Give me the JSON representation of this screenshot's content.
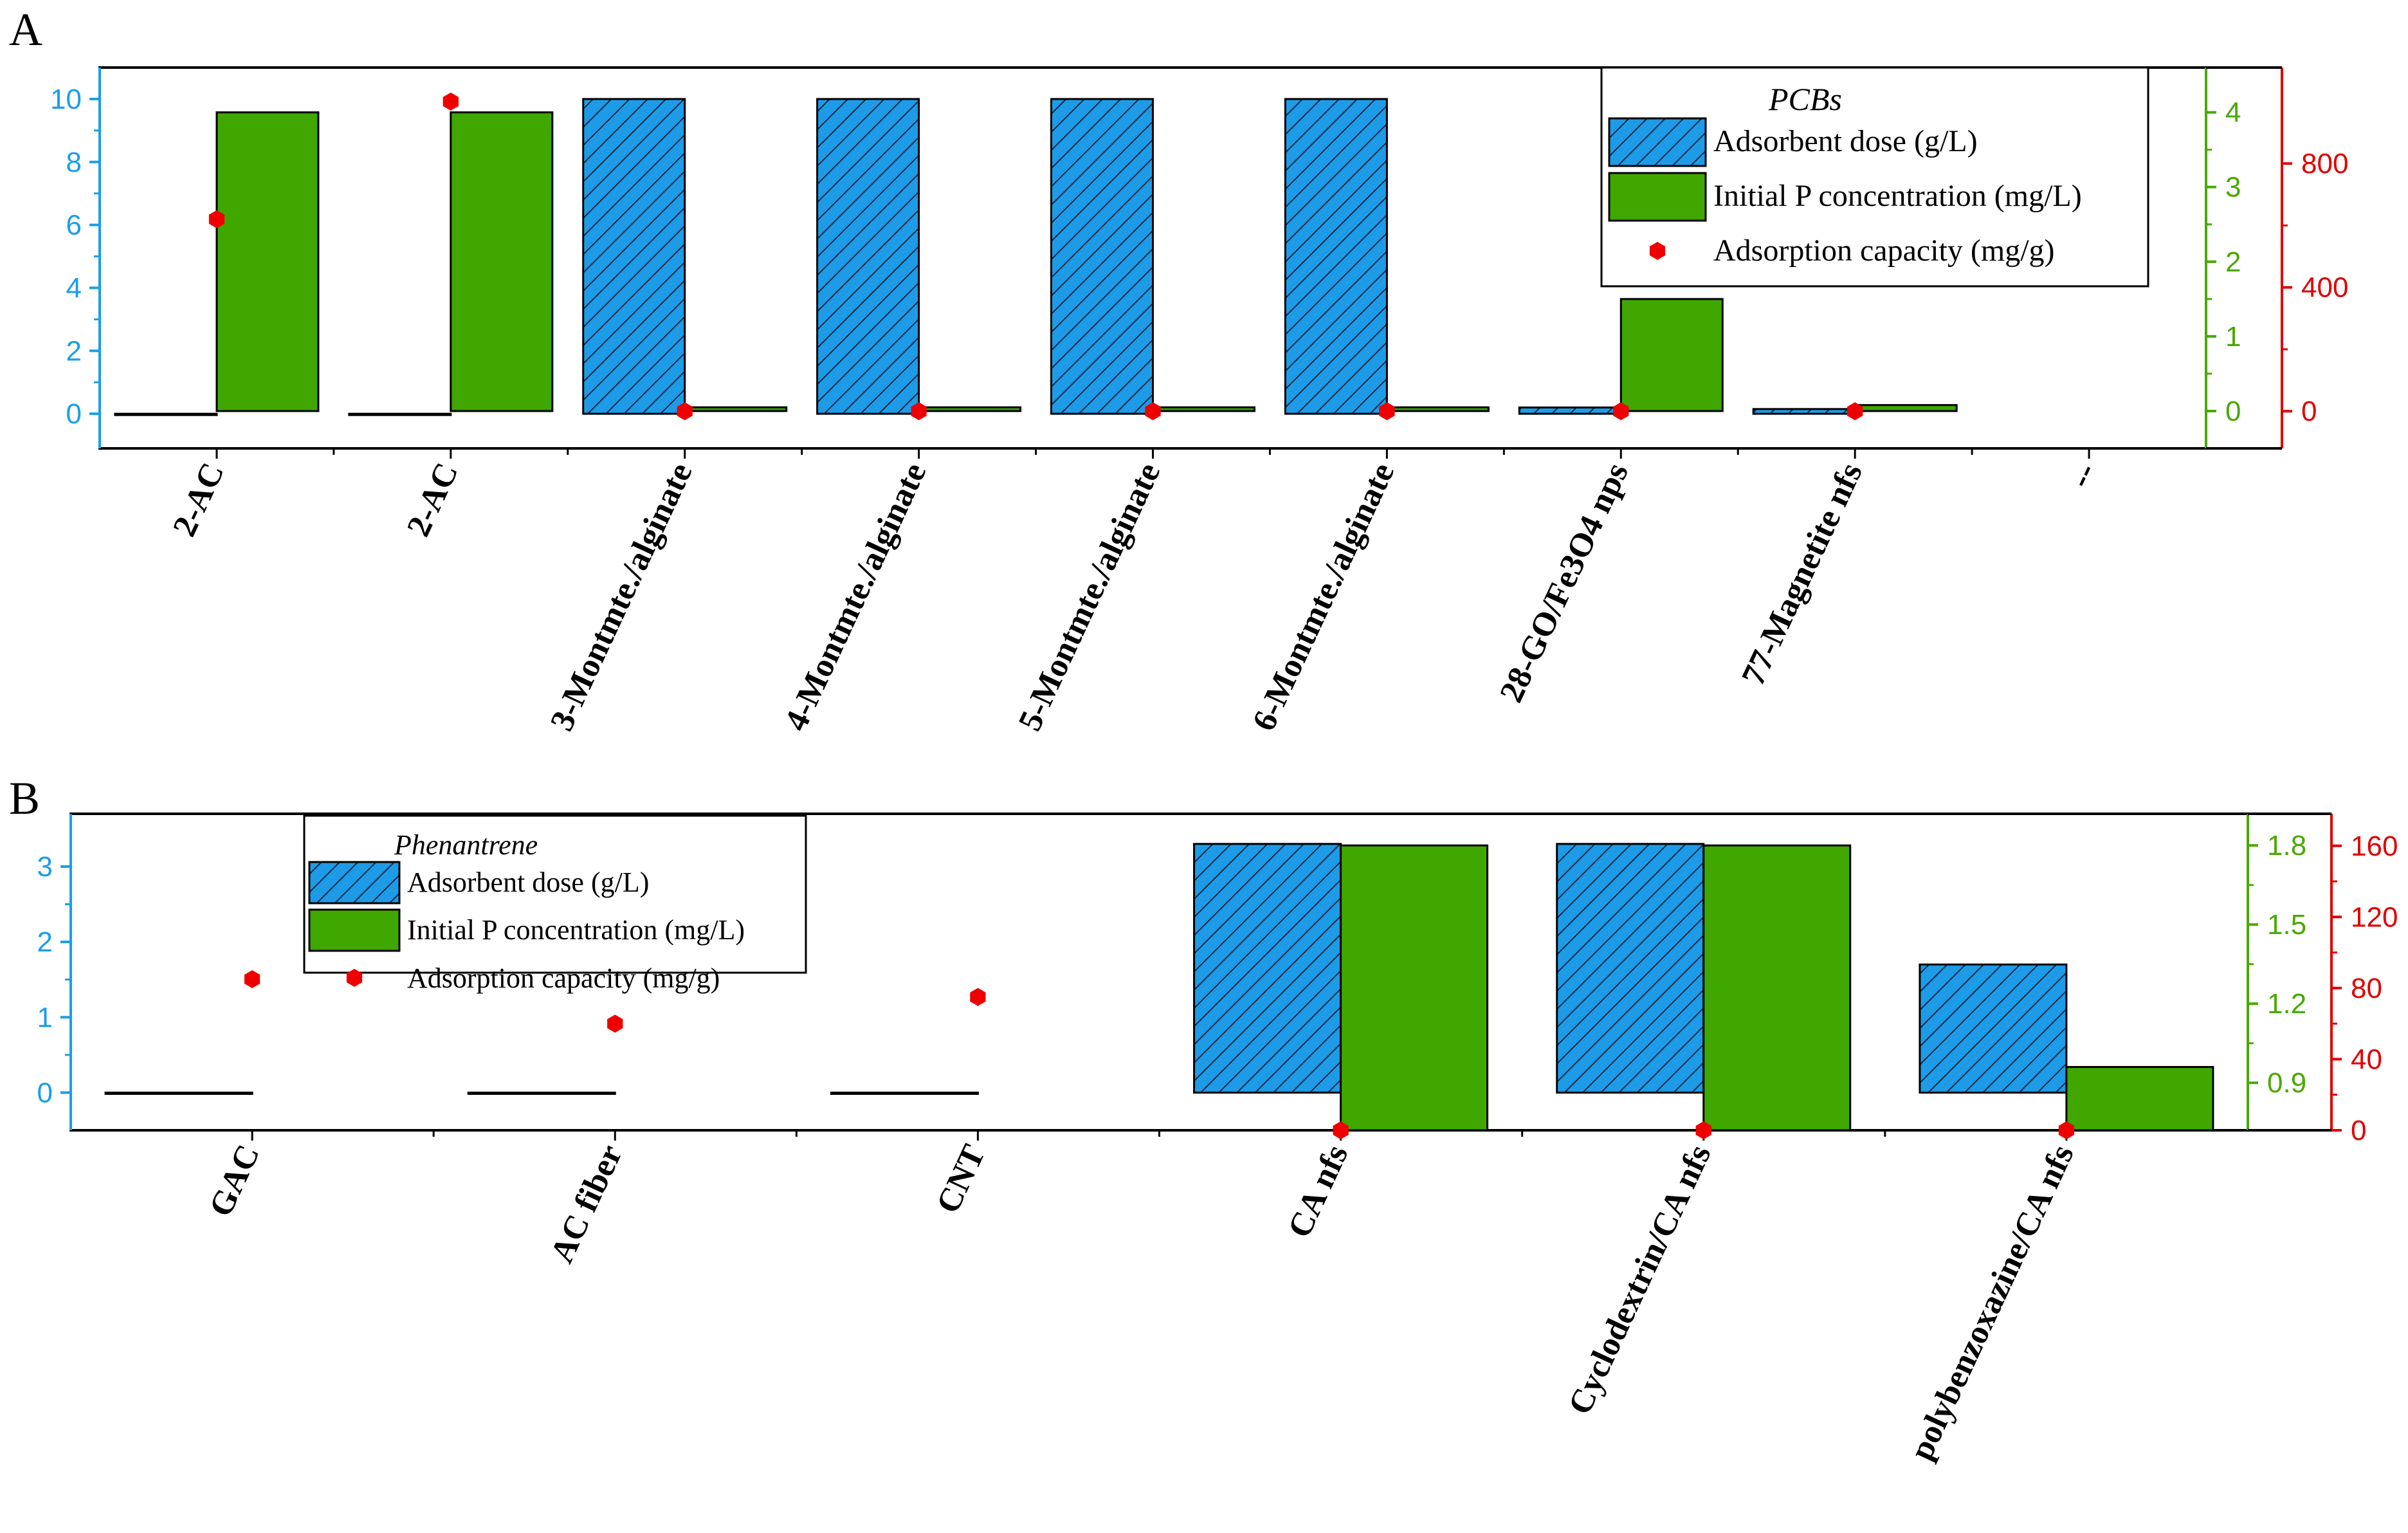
{
  "colors": {
    "dose_fill": "#1e9be6",
    "conc_fill": "#40a600",
    "capacity_marker": "#ee0000",
    "left_axis": "#1a9ee8",
    "green_axis": "#4aa800",
    "red_axis": "#e00000"
  },
  "chart_data": [
    {
      "panel": "A",
      "type": "bar",
      "legend_title": "PCBs",
      "legend_placement": "top-right",
      "categories": [
        "2-AC",
        "2-AC",
        "3-Montmte./alginate",
        "4-Montmte./alginate",
        "5-Montmte./alginate",
        "6-Montmte./alginate",
        "28-GO/Fe3O4 nps",
        "77-Magnetite nfs",
        "--"
      ],
      "series": [
        {
          "name": "Adsorbent dose (g/L)",
          "axis": "left",
          "kind": "bar",
          "values": [
            0,
            0,
            10,
            10,
            10,
            10,
            0.2,
            0.15,
            null
          ]
        },
        {
          "name": "Initial P concentration (mg/L)",
          "axis": "right-green",
          "kind": "bar",
          "values": [
            4.0,
            4.0,
            0.05,
            0.05,
            0.05,
            0.05,
            1.5,
            0.08,
            null
          ]
        },
        {
          "name": "Adsorption capacity (mg/g)",
          "axis": "right-red",
          "kind": "scatter",
          "values": [
            620,
            1000,
            0,
            0,
            0,
            0,
            0,
            0,
            null
          ]
        }
      ],
      "axes": {
        "left": {
          "range": [
            -1.1,
            11.0
          ],
          "ticks": [
            0,
            2,
            4,
            6,
            8,
            10
          ],
          "tick_labels": [
            "0",
            "2",
            "4",
            "6",
            "8",
            "10"
          ]
        },
        "right_green": {
          "range": [
            -0.5,
            4.6
          ],
          "ticks": [
            0,
            1,
            2,
            3,
            4
          ],
          "tick_labels": [
            "0",
            "1",
            "2",
            "3",
            "4"
          ]
        },
        "right_red": {
          "range": [
            -120,
            1110
          ],
          "ticks": [
            0,
            400,
            800
          ],
          "tick_labels": [
            "0",
            "400",
            "800"
          ]
        }
      },
      "grid": false
    },
    {
      "panel": "B",
      "type": "bar",
      "legend_title": "Phenantrene",
      "legend_placement": "top-left",
      "categories": [
        "GAC",
        "AC fiber",
        "CNT",
        "CA nfs",
        "Cyclodextrin/CA nfs",
        "polybenzoxazine/CA nfs"
      ],
      "series": [
        {
          "name": "Adsorbent dose (g/L)",
          "axis": "left",
          "kind": "bar",
          "values": [
            0,
            0,
            0,
            3.3,
            3.3,
            1.7
          ]
        },
        {
          "name": "Initial P concentration (mg/L)",
          "axis": "right-green",
          "kind": "bar",
          "values": [
            null,
            null,
            null,
            1.8,
            1.8,
            0.96
          ]
        },
        {
          "name": "Adsorption capacity (mg/g)",
          "axis": "right-red",
          "kind": "scatter",
          "values": [
            85,
            60,
            75,
            0,
            0,
            0
          ]
        }
      ],
      "axes": {
        "left": {
          "range": [
            -0.5,
            3.7
          ],
          "ticks": [
            0,
            1,
            2,
            3
          ],
          "tick_labels": [
            "0",
            "1",
            "2",
            "3"
          ]
        },
        "right_green": {
          "range": [
            0.72,
            1.92
          ],
          "ticks": [
            0.9,
            1.2,
            1.5,
            1.8
          ],
          "tick_labels": [
            "0.9",
            "1.2",
            "1.5",
            "1.8"
          ]
        },
        "right_red": {
          "range": [
            0,
            178
          ],
          "ticks": [
            0,
            40,
            80,
            120,
            160
          ],
          "tick_labels": [
            "0",
            "40",
            "80",
            "120",
            "160"
          ]
        }
      },
      "grid": false
    }
  ]
}
